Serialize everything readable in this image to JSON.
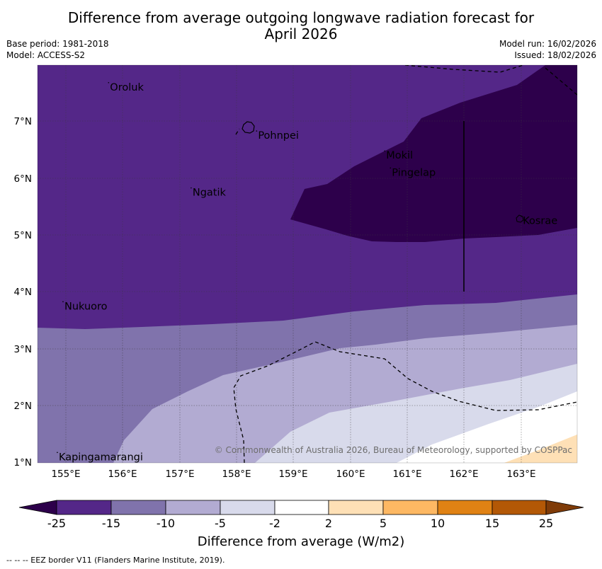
{
  "title": {
    "line1": "Difference from average outgoing longwave radiation forecast for",
    "line2": "April 2026"
  },
  "meta": {
    "base_period": "Base period: 1981-2018",
    "model": "Model: ACCESS-S2",
    "model_run": "Model run: 16/02/2026",
    "issued": "Issued: 18/02/2026"
  },
  "map": {
    "lon_ticks": [
      "155°E",
      "156°E",
      "157°E",
      "158°E",
      "159°E",
      "160°E",
      "161°E",
      "162°E",
      "163°E"
    ],
    "lat_ticks": [
      "7°N",
      "6°N",
      "5°N",
      "4°N",
      "3°N",
      "2°N",
      "1°N"
    ],
    "places": [
      {
        "name": "Oroluk",
        "lon": 155.75,
        "lat": 7.6
      },
      {
        "name": "Pohnpei",
        "lon": 158.35,
        "lat": 6.75
      },
      {
        "name": "Mokil",
        "lon": 160.6,
        "lat": 6.4
      },
      {
        "name": "Pingelap",
        "lon": 160.7,
        "lat": 6.1
      },
      {
        "name": "Ngatik",
        "lon": 157.2,
        "lat": 5.75
      },
      {
        "name": "Kosrae",
        "lon": 163.0,
        "lat": 5.25
      },
      {
        "name": "Nukuoro",
        "lon": 154.95,
        "lat": 3.75
      },
      {
        "name": "Kapingamarangi",
        "lon": 154.85,
        "lat": 1.1
      }
    ],
    "copyright": "© Commonwealth of Australia 2026, Bureau of Meteorology, supported by COSPPac"
  },
  "colorbar": {
    "ticks": [
      "-25",
      "-15",
      "-10",
      "-5",
      "-2",
      "2",
      "5",
      "10",
      "15",
      "25"
    ],
    "colors": [
      "#2d004b",
      "#542788",
      "#8073ac",
      "#b2abd2",
      "#d8daeb",
      "#ffffff",
      "#fee0b6",
      "#fdb863",
      "#e08214",
      "#b35806",
      "#7f3b08"
    ],
    "label": "Difference from average (W/m2)"
  },
  "footer": "-- -- -- EEZ border V11 (Flanders Marine Institute, 2019)."
}
